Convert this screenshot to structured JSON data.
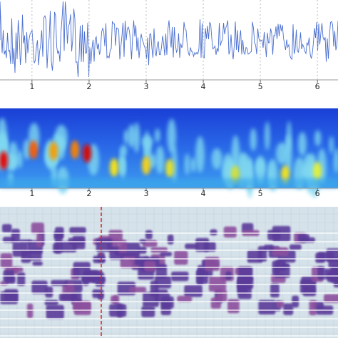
{
  "waveform_axis": {
    "xlim": [
      0.44,
      6.36
    ],
    "xticks": [
      1,
      2,
      3,
      4,
      5,
      6
    ]
  },
  "scalogram_axis": {
    "xlim": [
      0.44,
      6.36
    ],
    "xticks": [
      1,
      2,
      3,
      4,
      5,
      6
    ]
  }
}
